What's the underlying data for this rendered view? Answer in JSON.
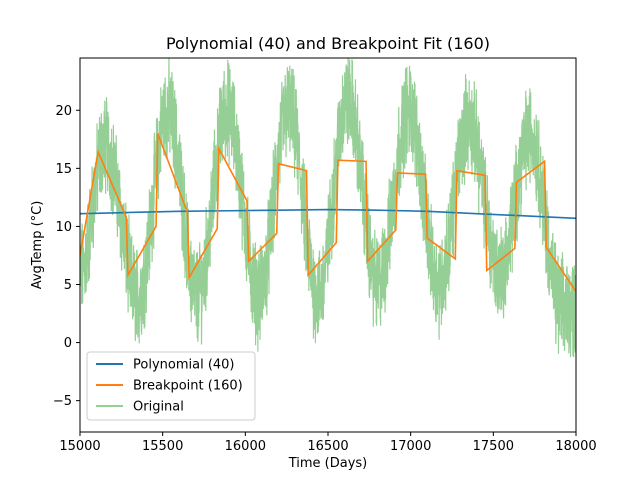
{
  "chart_data": {
    "type": "line",
    "title": "Polynomial (40) and Breakpoint Fit (160)",
    "xlabel": "Time (Days)",
    "ylabel": "AvgTemp (°C)",
    "xlim": [
      15000,
      18000
    ],
    "ylim": [
      -7.7,
      24.5
    ],
    "xticks": [
      15000,
      15500,
      16000,
      16500,
      17000,
      17500,
      18000
    ],
    "yticks": [
      -5,
      0,
      5,
      10,
      15,
      20
    ],
    "grid": false,
    "legend_position": "lower-left",
    "series": [
      {
        "name": "Polynomial (40)",
        "color": "#1f77b4",
        "x": [
          15000,
          15300,
          15600,
          15900,
          16200,
          16500,
          16800,
          17100,
          17400,
          17700,
          18000
        ],
        "y": [
          11.1,
          11.2,
          11.3,
          11.35,
          11.4,
          11.45,
          11.4,
          11.3,
          11.1,
          10.9,
          10.7
        ]
      },
      {
        "name": "Breakpoint (160)",
        "color": "#ff7f0e",
        "x": [
          15000,
          15110,
          15280,
          15290,
          15460,
          15470,
          15650,
          15660,
          15830,
          15840,
          16010,
          16020,
          16190,
          16200,
          16370,
          16380,
          16550,
          16560,
          16730,
          16740,
          16910,
          16920,
          17090,
          17100,
          17270,
          17280,
          17450,
          17460,
          17630,
          17640,
          17810,
          17820,
          18000
        ],
        "y": [
          7.5,
          16.4,
          10.8,
          5.8,
          10.0,
          18.0,
          11.2,
          5.6,
          9.8,
          16.7,
          12.2,
          7.0,
          9.4,
          15.4,
          14.8,
          5.8,
          8.6,
          15.7,
          15.6,
          7.0,
          9.7,
          14.6,
          14.5,
          9.0,
          7.2,
          14.8,
          14.4,
          6.2,
          8.1,
          13.8,
          15.6,
          8.2,
          4.4
        ]
      },
      {
        "name": "Original",
        "color": "#2ca02c",
        "opacity": 0.5,
        "description": "noisy daily average temperature series oscillating seasonally between about 1 and 22",
        "x_start": 15000,
        "x_end": 18000,
        "seasonal_peaks": [
          {
            "x": 15150,
            "y": 17
          },
          {
            "x": 15530,
            "y": 20
          },
          {
            "x": 15890,
            "y": 20
          },
          {
            "x": 16260,
            "y": 20
          },
          {
            "x": 16620,
            "y": 21
          },
          {
            "x": 16990,
            "y": 20
          },
          {
            "x": 17350,
            "y": 19
          },
          {
            "x": 17720,
            "y": 18
          }
        ],
        "seasonal_troughs": [
          {
            "x": 15000,
            "y": 6
          },
          {
            "x": 15350,
            "y": 4
          },
          {
            "x": 15710,
            "y": 4
          },
          {
            "x": 16080,
            "y": 4
          },
          {
            "x": 16440,
            "y": 4
          },
          {
            "x": 16800,
            "y": 5
          },
          {
            "x": 17170,
            "y": 5
          },
          {
            "x": 17540,
            "y": 6
          },
          {
            "x": 17910,
            "y": 3
          }
        ]
      }
    ]
  }
}
